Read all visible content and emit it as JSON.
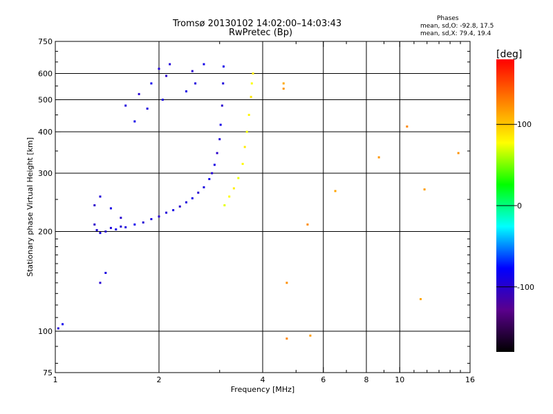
{
  "title_line1": "Tromsø 20130102 14:02:00–14:03:43",
  "title_line2": "RwPretec (Bp)",
  "stats": {
    "heading": "Phases",
    "line_o": "mean, sd,O: -92.8, 17.5",
    "line_x": "mean, sd,X:  79.4, 19.4"
  },
  "chart_data": {
    "type": "scatter",
    "xlabel": "Frequency [MHz]",
    "ylabel": "Stationary phase Virtual Height [km]",
    "xscale": "log",
    "yscale": "log",
    "xlim": [
      1,
      16
    ],
    "ylim": [
      75,
      750
    ],
    "grid": true,
    "x_ticks": [
      1,
      2,
      4,
      6,
      8,
      10,
      16
    ],
    "x_tick_labels": [
      "1",
      "2",
      "4",
      "6",
      "8",
      "10",
      "16"
    ],
    "x_gridlines": [
      2,
      4,
      6,
      8,
      10
    ],
    "y_ticks": [
      75,
      100,
      200,
      300,
      400,
      500,
      600,
      750
    ],
    "y_tick_labels": [
      "75",
      "100",
      "200",
      "300",
      "400",
      "500",
      "600",
      "750"
    ],
    "y_gridlines": [
      100,
      200,
      300,
      400,
      500,
      600
    ],
    "colorbar": {
      "label": "[deg]",
      "range": [
        -180,
        180
      ],
      "ticks": [
        100,
        0,
        -100
      ],
      "tick_labels": [
        "100",
        "0",
        "-100"
      ],
      "colors": [
        "#000000",
        "#5a008c",
        "#0000ff",
        "#00ffff",
        "#00ff00",
        "#ffff00",
        "#ff8000",
        "#ff0000"
      ]
    },
    "series": [
      {
        "role": "O-mode F-layer trace",
        "phase_mean": -92.8,
        "points": [
          [
            1.3,
            210
          ],
          [
            1.32,
            202
          ],
          [
            1.35,
            198
          ],
          [
            1.4,
            200
          ],
          [
            1.45,
            205
          ],
          [
            1.5,
            203
          ],
          [
            1.55,
            207
          ],
          [
            1.6,
            206
          ],
          [
            1.7,
            210
          ],
          [
            1.8,
            213
          ],
          [
            1.9,
            218
          ],
          [
            2.0,
            222
          ],
          [
            2.1,
            228
          ],
          [
            2.2,
            232
          ],
          [
            2.3,
            238
          ],
          [
            2.4,
            245
          ],
          [
            2.5,
            252
          ],
          [
            2.6,
            262
          ],
          [
            2.7,
            272
          ],
          [
            2.8,
            288
          ],
          [
            2.85,
            300
          ],
          [
            2.9,
            318
          ],
          [
            2.95,
            345
          ],
          [
            3.0,
            380
          ],
          [
            3.02,
            420
          ],
          [
            3.05,
            480
          ],
          [
            3.07,
            560
          ],
          [
            3.08,
            630
          ]
        ]
      },
      {
        "role": "O-mode upper scatter",
        "phase_mean": -92.8,
        "points": [
          [
            1.3,
            240
          ],
          [
            1.35,
            255
          ],
          [
            1.45,
            235
          ],
          [
            1.55,
            220
          ],
          [
            1.6,
            480
          ],
          [
            1.7,
            430
          ],
          [
            1.75,
            520
          ],
          [
            1.85,
            470
          ],
          [
            1.9,
            560
          ],
          [
            2.0,
            620
          ],
          [
            2.05,
            500
          ],
          [
            2.1,
            590
          ],
          [
            2.15,
            640
          ],
          [
            2.4,
            530
          ],
          [
            2.5,
            610
          ],
          [
            2.55,
            560
          ],
          [
            2.7,
            640
          ],
          [
            1.35,
            140
          ],
          [
            1.4,
            150
          ],
          [
            1.05,
            105
          ],
          [
            1.02,
            102
          ]
        ]
      },
      {
        "role": "X-mode F-layer trace",
        "phase_mean": 79.4,
        "points": [
          [
            3.1,
            240
          ],
          [
            3.2,
            255
          ],
          [
            3.3,
            270
          ],
          [
            3.4,
            290
          ],
          [
            3.5,
            320
          ],
          [
            3.55,
            360
          ],
          [
            3.6,
            400
          ],
          [
            3.65,
            450
          ],
          [
            3.7,
            510
          ],
          [
            3.72,
            560
          ],
          [
            3.75,
            600
          ]
        ]
      },
      {
        "role": "sparse high-frequency echoes",
        "phase_mean": 120,
        "points": [
          [
            4.6,
            560
          ],
          [
            4.6,
            540
          ],
          [
            5.4,
            210
          ],
          [
            6.5,
            265
          ],
          [
            8.7,
            335
          ],
          [
            10.5,
            415
          ],
          [
            11.8,
            268
          ],
          [
            14.8,
            345
          ],
          [
            4.7,
            95
          ],
          [
            5.5,
            97
          ],
          [
            4.7,
            140
          ],
          [
            11.5,
            125
          ]
        ]
      }
    ]
  }
}
